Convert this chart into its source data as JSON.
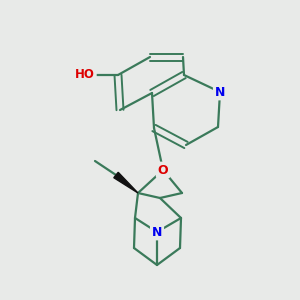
{
  "background_color": "#e8eae8",
  "bond_color": "#3a7a5a",
  "atom_colors": {
    "N": "#0000ee",
    "O": "#dd0000",
    "H": "#555555",
    "C": "#3a7a5a"
  },
  "figsize": [
    3.0,
    3.0
  ],
  "dpi": 100
}
